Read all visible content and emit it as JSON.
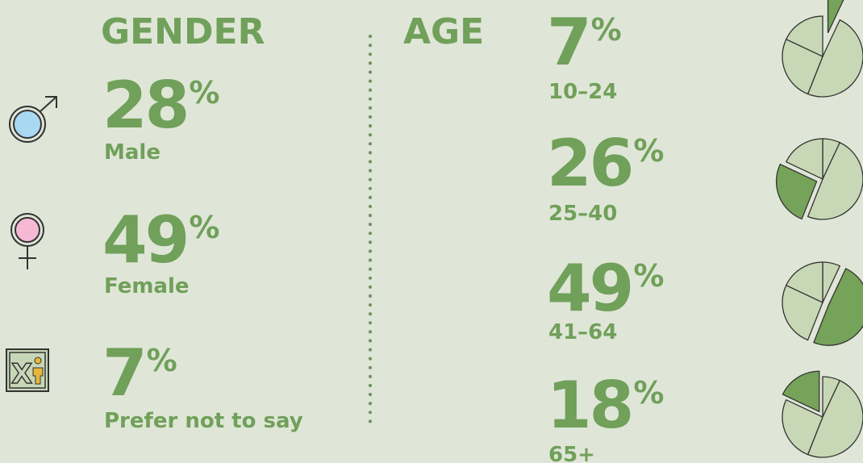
{
  "unit": "%",
  "gender": {
    "title": "GENDER",
    "items": [
      {
        "value": 28,
        "label": "Male"
      },
      {
        "value": 49,
        "label": "Female"
      },
      {
        "value": 7,
        "label": "Prefer not to say"
      }
    ]
  },
  "age": {
    "title": "AGE",
    "items": [
      {
        "value": 7,
        "label": "10–24"
      },
      {
        "value": 26,
        "label": "25–40"
      },
      {
        "value": 49,
        "label": "41–64"
      },
      {
        "value": 18,
        "label": "65+"
      }
    ]
  }
}
